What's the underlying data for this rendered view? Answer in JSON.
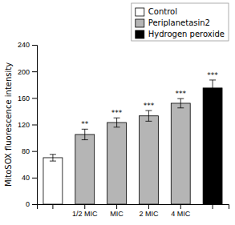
{
  "chart_data": {
    "type": "bar",
    "categories": [
      null,
      "1/2 MIC",
      "MIC",
      "2 MIC",
      "4 MIC",
      null
    ],
    "series": [
      {
        "name": "Control",
        "color": "#ffffff",
        "values": [
          70,
          null,
          null,
          null,
          null,
          null
        ],
        "errors": [
          5,
          null,
          null,
          null,
          null,
          null
        ],
        "annotations": [
          null,
          null,
          null,
          null,
          null,
          null
        ]
      },
      {
        "name": "Periplanetasin2",
        "color": "#b5b5b5",
        "values": [
          null,
          105,
          123,
          133,
          152,
          null
        ],
        "errors": [
          null,
          8,
          7,
          8,
          7,
          null
        ],
        "annotations": [
          null,
          "**",
          "***",
          "***",
          "***",
          null
        ]
      },
      {
        "name": "Hydrogen peroxide",
        "color": "#000000",
        "values": [
          null,
          null,
          null,
          null,
          null,
          175
        ],
        "errors": [
          null,
          null,
          null,
          null,
          null,
          12
        ],
        "annotations": [
          null,
          null,
          null,
          null,
          null,
          "***"
        ]
      }
    ],
    "y_label": "MitoSOX fluorescence intensity",
    "ylim": [
      0,
      240
    ],
    "yticks": [
      0,
      40,
      80,
      120,
      160,
      200,
      240
    ],
    "grid": false,
    "legend": "upper right"
  }
}
